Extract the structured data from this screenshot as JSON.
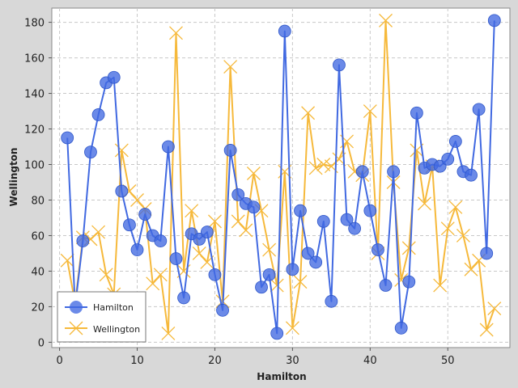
{
  "chart_data": {
    "type": "line",
    "xlabel": "Hamilton",
    "ylabel": "Wellington",
    "xlim": [
      -1,
      58
    ],
    "ylim": [
      -3,
      188
    ],
    "x_ticks": [
      0,
      10,
      20,
      30,
      40,
      50
    ],
    "y_ticks": [
      0,
      20,
      40,
      60,
      80,
      100,
      120,
      140,
      160,
      180
    ],
    "grid": true,
    "legend_position": "bottom-left",
    "series": [
      {
        "name": "Hamilton",
        "color": "#4169e1",
        "marker": "circle",
        "x": [
          1,
          2,
          3,
          4,
          5,
          6,
          7,
          8,
          9,
          10,
          11,
          12,
          13,
          14,
          15,
          16,
          17,
          18,
          19,
          20,
          21,
          22,
          23,
          24,
          25,
          26,
          27,
          28,
          29,
          30,
          31,
          32,
          33,
          34,
          35,
          36,
          37,
          38,
          39,
          40,
          41,
          42,
          43,
          44,
          45,
          46,
          47,
          48,
          49,
          50,
          51,
          52,
          53,
          54,
          55,
          56
        ],
        "values": [
          115,
          20,
          57,
          107,
          128,
          146,
          149,
          85,
          66,
          52,
          72,
          60,
          57,
          110,
          47,
          25,
          61,
          58,
          62,
          38,
          18,
          108,
          83,
          78,
          76,
          31,
          38,
          5,
          175,
          41,
          74,
          50,
          45,
          68,
          23,
          156,
          69,
          64,
          96,
          74,
          52,
          32,
          96,
          8,
          34,
          129,
          98,
          100,
          99,
          103,
          113,
          96,
          94,
          131,
          50,
          181
        ]
      },
      {
        "name": "Wellington",
        "color": "#f6b93b",
        "marker": "x",
        "x": [
          1,
          2,
          3,
          4,
          5,
          6,
          7,
          8,
          9,
          10,
          11,
          12,
          13,
          14,
          15,
          16,
          17,
          18,
          19,
          20,
          21,
          22,
          23,
          24,
          25,
          26,
          27,
          28,
          29,
          30,
          31,
          32,
          33,
          34,
          35,
          36,
          37,
          38,
          39,
          40,
          41,
          42,
          43,
          44,
          45,
          46,
          47,
          48,
          49,
          50,
          51,
          52,
          53,
          54,
          55,
          56
        ],
        "values": [
          46,
          22,
          59,
          58,
          62,
          38,
          27,
          108,
          85,
          80,
          75,
          33,
          38,
          5,
          174,
          40,
          74,
          50,
          45,
          68,
          23,
          155,
          68,
          63,
          95,
          74,
          52,
          32,
          96,
          8,
          34,
          129,
          98,
          100,
          99,
          103,
          113,
          96,
          94,
          130,
          50,
          181,
          90,
          35,
          53,
          108,
          78,
          99,
          32,
          64,
          76,
          60,
          41,
          46,
          7,
          19
        ]
      }
    ]
  }
}
